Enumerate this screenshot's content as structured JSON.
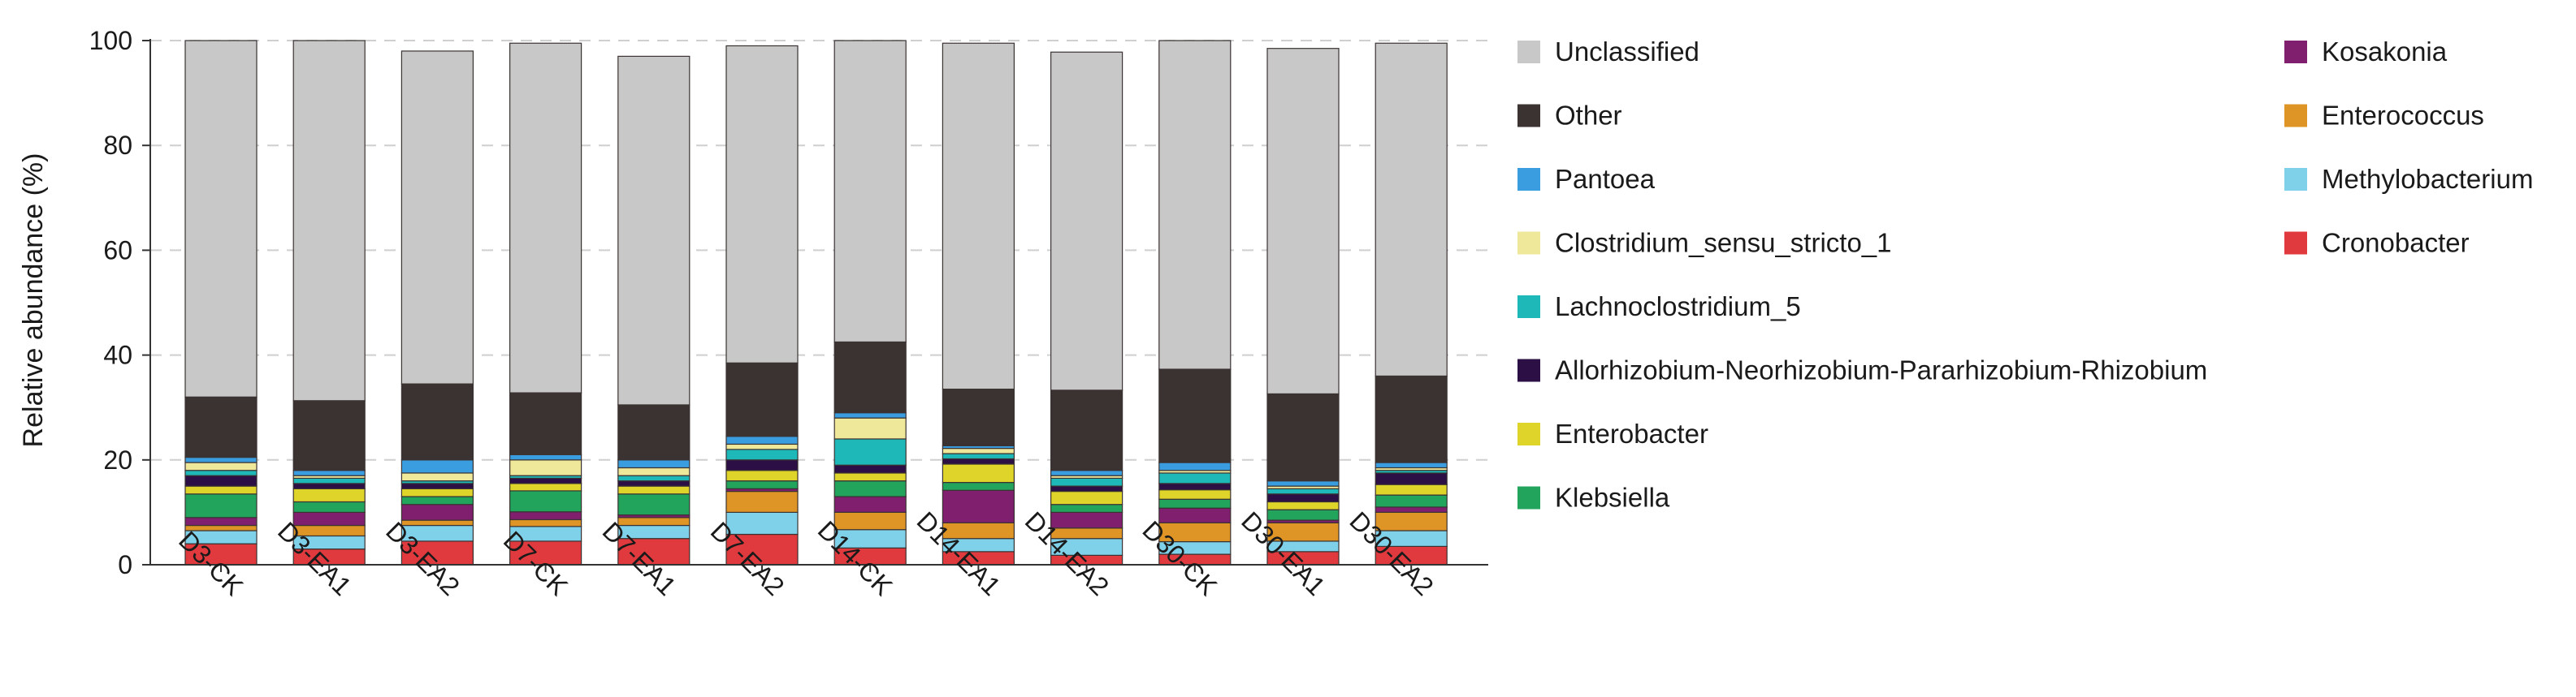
{
  "chart_data": {
    "type": "bar",
    "stacked": true,
    "title": "",
    "xlabel": "",
    "ylabel": "Relative abundance (%)",
    "ylim": [
      0,
      100
    ],
    "yticks": [
      "0",
      "20",
      "40",
      "60",
      "80",
      "100"
    ],
    "grid": "horizontal-dashed",
    "legend_position": "right",
    "categories": [
      "D3-CK",
      "D3-EA1",
      "D3-EA2",
      "D7-CK",
      "D7-EA1",
      "D7-EA2",
      "D14-CK",
      "D14-EA1",
      "D14-EA2",
      "D30-CK",
      "D30-EA1",
      "D30-EA2"
    ],
    "series": [
      {
        "name": "Cronobacter",
        "color": "#e03a3e",
        "values": [
          4.0,
          3.0,
          4.5,
          4.5,
          5.0,
          5.8,
          3.2,
          2.5,
          1.8,
          2.0,
          2.5,
          3.5
        ]
      },
      {
        "name": "Methylobacterium",
        "color": "#7fd1ea",
        "values": [
          2.5,
          2.5,
          3.0,
          2.8,
          2.5,
          4.2,
          3.5,
          2.5,
          3.2,
          2.4,
          2.0,
          3.0
        ]
      },
      {
        "name": "Enterococcus",
        "color": "#de9525",
        "values": [
          1.0,
          2.0,
          1.0,
          1.3,
          1.5,
          4.0,
          3.3,
          3.0,
          2.0,
          3.6,
          3.5,
          3.5
        ]
      },
      {
        "name": "Kosakonia",
        "color": "#7f1f6e",
        "values": [
          1.5,
          2.5,
          3.0,
          1.5,
          0.5,
          0.5,
          3.0,
          6.2,
          3.0,
          2.8,
          0.5,
          1.0
        ]
      },
      {
        "name": "Klebsiella",
        "color": "#22a45d",
        "values": [
          4.5,
          2.0,
          1.5,
          4.0,
          4.0,
          1.5,
          3.0,
          1.5,
          1.5,
          1.7,
          2.0,
          2.3
        ]
      },
      {
        "name": "Enterobacter",
        "color": "#dfd42a",
        "values": [
          1.5,
          2.5,
          1.5,
          1.4,
          1.5,
          2.0,
          1.5,
          3.5,
          2.5,
          1.8,
          1.5,
          2.0
        ]
      },
      {
        "name": "Allorhizobium-Neorhizobium-Pararhizobium-Rhizobium",
        "color": "#2b0f45",
        "values": [
          2.0,
          1.0,
          1.0,
          1.0,
          1.0,
          2.0,
          1.5,
          1.0,
          1.0,
          1.2,
          1.5,
          2.2
        ]
      },
      {
        "name": "Lachnoclostridium_5",
        "color": "#1fb8b8",
        "values": [
          1.0,
          1.0,
          0.5,
          0.5,
          1.0,
          2.0,
          5.0,
          1.0,
          1.5,
          2.0,
          1.0,
          0.5
        ]
      },
      {
        "name": "Clostridium_sensu_stricto_1",
        "color": "#efe79a",
        "values": [
          1.5,
          0.5,
          1.5,
          3.0,
          1.5,
          1.0,
          4.0,
          1.0,
          0.5,
          0.5,
          0.5,
          0.5
        ]
      },
      {
        "name": "Pantoea",
        "color": "#3a9de0",
        "values": [
          1.0,
          1.0,
          2.5,
          1.0,
          1.5,
          1.5,
          1.0,
          0.5,
          1.0,
          1.5,
          1.0,
          1.0
        ]
      },
      {
        "name": "Other",
        "color": "#3b3332",
        "values": [
          11.5,
          13.3,
          14.5,
          11.8,
          10.5,
          14.0,
          13.5,
          10.8,
          15.3,
          17.8,
          16.6,
          16.5
        ]
      },
      {
        "name": "Unclassified",
        "color": "#c8c8c8",
        "values": [
          68.0,
          68.7,
          63.5,
          66.7,
          66.5,
          60.5,
          57.5,
          66.0,
          64.5,
          62.7,
          65.9,
          63.5
        ]
      }
    ],
    "legend_order": [
      "Unclassified",
      "Other",
      "Pantoea",
      "Clostridium_sensu_stricto_1",
      "Lachnoclostridium_5",
      "Allorhizobium-Neorhizobium-Pararhizobium-Rhizobium",
      "Enterobacter",
      "Klebsiella",
      "Kosakonia",
      "Enterococcus",
      "Methylobacterium",
      "Cronobacter"
    ]
  }
}
